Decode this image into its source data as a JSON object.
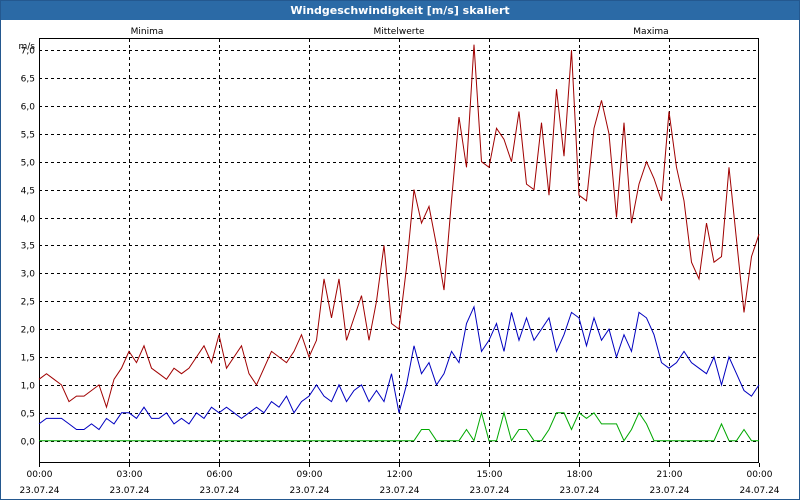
{
  "window": {
    "title": "Windgeschwindigkeit [m/s] skaliert"
  },
  "chart_data": {
    "type": "line",
    "title": "Windgeschwindigkeit [m/s] skaliert",
    "ylabel": "m/s",
    "ylim": [
      0,
      7.0
    ],
    "yticks": [
      "0,0",
      "0,5",
      "1,0",
      "1,5",
      "2,0",
      "2,5",
      "3,0",
      "3,5",
      "4,0",
      "4,5",
      "5,0",
      "5,5",
      "6,0",
      "6,5",
      "7,0"
    ],
    "xlim": [
      0,
      24
    ],
    "xticks": [
      {
        "time": "00:00",
        "date": "23.07.24"
      },
      {
        "time": "03:00",
        "date": "23.07.24"
      },
      {
        "time": "06:00",
        "date": "23.07.24"
      },
      {
        "time": "09:00",
        "date": "23.07.24"
      },
      {
        "time": "12:00",
        "date": "23.07.24"
      },
      {
        "time": "15:00",
        "date": "23.07.24"
      },
      {
        "time": "18:00",
        "date": "23.07.24"
      },
      {
        "time": "21:00",
        "date": "23.07.24"
      },
      {
        "time": "00:00",
        "date": "24.07.24"
      }
    ],
    "grid": true,
    "legend": "top",
    "series": [
      {
        "name": "Minima",
        "color": "#00a800",
        "x": [
          0,
          12.5,
          12.75,
          13.0,
          13.25,
          14.0,
          14.25,
          14.5,
          14.75,
          15.0,
          15.25,
          15.5,
          15.75,
          16.0,
          16.25,
          16.5,
          16.75,
          17.0,
          17.25,
          17.5,
          17.75,
          18.0,
          18.25,
          18.5,
          18.75,
          19.25,
          19.5,
          19.75,
          20.0,
          20.25,
          20.5,
          20.75,
          21.0,
          22.5,
          22.75,
          23.0,
          23.25,
          23.5,
          23.75,
          24.0
        ],
        "y": [
          0,
          0,
          0.2,
          0.2,
          0,
          0,
          0.2,
          0,
          0.5,
          0,
          0,
          0.5,
          0,
          0.2,
          0.2,
          0,
          0,
          0.2,
          0.5,
          0.5,
          0.2,
          0.5,
          0.4,
          0.5,
          0.3,
          0.3,
          0,
          0.2,
          0.5,
          0.3,
          0,
          0,
          0,
          0,
          0.3,
          0,
          0,
          0.2,
          0,
          0
        ]
      },
      {
        "name": "Mittelwerte",
        "color": "#0000c0",
        "x": [
          0,
          0.25,
          0.5,
          0.75,
          1.0,
          1.25,
          1.5,
          1.75,
          2.0,
          2.25,
          2.5,
          2.75,
          3.0,
          3.25,
          3.5,
          3.75,
          4.0,
          4.25,
          4.5,
          4.75,
          5.0,
          5.25,
          5.5,
          5.75,
          6.0,
          6.25,
          6.5,
          6.75,
          7.0,
          7.25,
          7.5,
          7.75,
          8.0,
          8.25,
          8.5,
          8.75,
          9.0,
          9.25,
          9.5,
          9.75,
          10.0,
          10.25,
          10.5,
          10.75,
          11.0,
          11.25,
          11.5,
          11.75,
          12.0,
          12.25,
          12.5,
          12.75,
          13.0,
          13.25,
          13.5,
          13.75,
          14.0,
          14.25,
          14.5,
          14.75,
          15.0,
          15.25,
          15.5,
          15.75,
          16.0,
          16.25,
          16.5,
          16.75,
          17.0,
          17.25,
          17.5,
          17.75,
          18.0,
          18.25,
          18.5,
          18.75,
          19.0,
          19.25,
          19.5,
          19.75,
          20.0,
          20.25,
          20.5,
          20.75,
          21.0,
          21.25,
          21.5,
          21.75,
          22.0,
          22.25,
          22.5,
          22.75,
          23.0,
          23.25,
          23.5,
          23.75,
          24.0
        ],
        "y": [
          0.3,
          0.4,
          0.4,
          0.4,
          0.3,
          0.2,
          0.2,
          0.3,
          0.2,
          0.4,
          0.3,
          0.5,
          0.5,
          0.4,
          0.6,
          0.4,
          0.4,
          0.5,
          0.3,
          0.4,
          0.3,
          0.5,
          0.4,
          0.6,
          0.5,
          0.6,
          0.5,
          0.4,
          0.5,
          0.6,
          0.5,
          0.7,
          0.6,
          0.8,
          0.5,
          0.7,
          0.8,
          1.0,
          0.8,
          0.7,
          1.0,
          0.7,
          0.9,
          1.0,
          0.7,
          0.9,
          0.7,
          1.2,
          0.5,
          1.0,
          1.7,
          1.2,
          1.4,
          1.0,
          1.2,
          1.6,
          1.4,
          2.1,
          2.4,
          1.6,
          1.8,
          2.1,
          1.6,
          2.3,
          1.8,
          2.2,
          1.8,
          2.0,
          2.2,
          1.6,
          1.9,
          2.3,
          2.2,
          1.7,
          2.2,
          1.8,
          2.0,
          1.5,
          1.9,
          1.6,
          2.3,
          2.2,
          1.9,
          1.4,
          1.3,
          1.4,
          1.6,
          1.4,
          1.3,
          1.2,
          1.5,
          1.0,
          1.5,
          1.2,
          0.9,
          0.8,
          1.0
        ]
      },
      {
        "name": "Maxima",
        "color": "#a00000",
        "x": [
          0,
          0.25,
          0.5,
          0.75,
          1.0,
          1.25,
          1.5,
          1.75,
          2.0,
          2.25,
          2.5,
          2.75,
          3.0,
          3.25,
          3.5,
          3.75,
          4.0,
          4.25,
          4.5,
          4.75,
          5.0,
          5.25,
          5.5,
          5.75,
          6.0,
          6.25,
          6.5,
          6.75,
          7.0,
          7.25,
          7.5,
          7.75,
          8.0,
          8.25,
          8.5,
          8.75,
          9.0,
          9.25,
          9.5,
          9.75,
          10.0,
          10.25,
          10.5,
          10.75,
          11.0,
          11.25,
          11.5,
          11.75,
          12.0,
          12.25,
          12.5,
          12.75,
          13.0,
          13.25,
          13.5,
          13.75,
          14.0,
          14.25,
          14.5,
          14.75,
          15.0,
          15.25,
          15.5,
          15.75,
          16.0,
          16.25,
          16.5,
          16.75,
          17.0,
          17.25,
          17.5,
          17.75,
          18.0,
          18.25,
          18.5,
          18.75,
          19.0,
          19.25,
          19.5,
          19.75,
          20.0,
          20.25,
          20.5,
          20.75,
          21.0,
          21.25,
          21.5,
          21.75,
          22.0,
          22.25,
          22.5,
          22.75,
          23.0,
          23.25,
          23.5,
          23.75,
          24.0
        ],
        "y": [
          1.1,
          1.2,
          1.1,
          1.0,
          0.7,
          0.8,
          0.8,
          0.9,
          1.0,
          0.6,
          1.1,
          1.3,
          1.6,
          1.4,
          1.7,
          1.3,
          1.2,
          1.1,
          1.3,
          1.2,
          1.3,
          1.5,
          1.7,
          1.4,
          1.9,
          1.3,
          1.5,
          1.7,
          1.2,
          1.0,
          1.3,
          1.6,
          1.5,
          1.4,
          1.6,
          1.9,
          1.5,
          1.8,
          2.9,
          2.2,
          2.9,
          1.8,
          2.2,
          2.6,
          1.8,
          2.5,
          3.5,
          2.1,
          2.0,
          3.1,
          4.5,
          3.9,
          4.2,
          3.5,
          2.7,
          4.3,
          5.8,
          4.9,
          7.1,
          5.0,
          4.9,
          5.6,
          5.4,
          5.0,
          5.9,
          4.6,
          4.5,
          5.7,
          4.4,
          6.3,
          5.1,
          7.0,
          4.4,
          4.3,
          5.6,
          6.1,
          5.5,
          4.0,
          5.7,
          3.9,
          4.6,
          5.0,
          4.7,
          4.3,
          5.9,
          4.9,
          4.3,
          3.2,
          2.9,
          3.9,
          3.2,
          3.3,
          4.9,
          3.6,
          2.3,
          3.3,
          3.7
        ]
      }
    ]
  }
}
